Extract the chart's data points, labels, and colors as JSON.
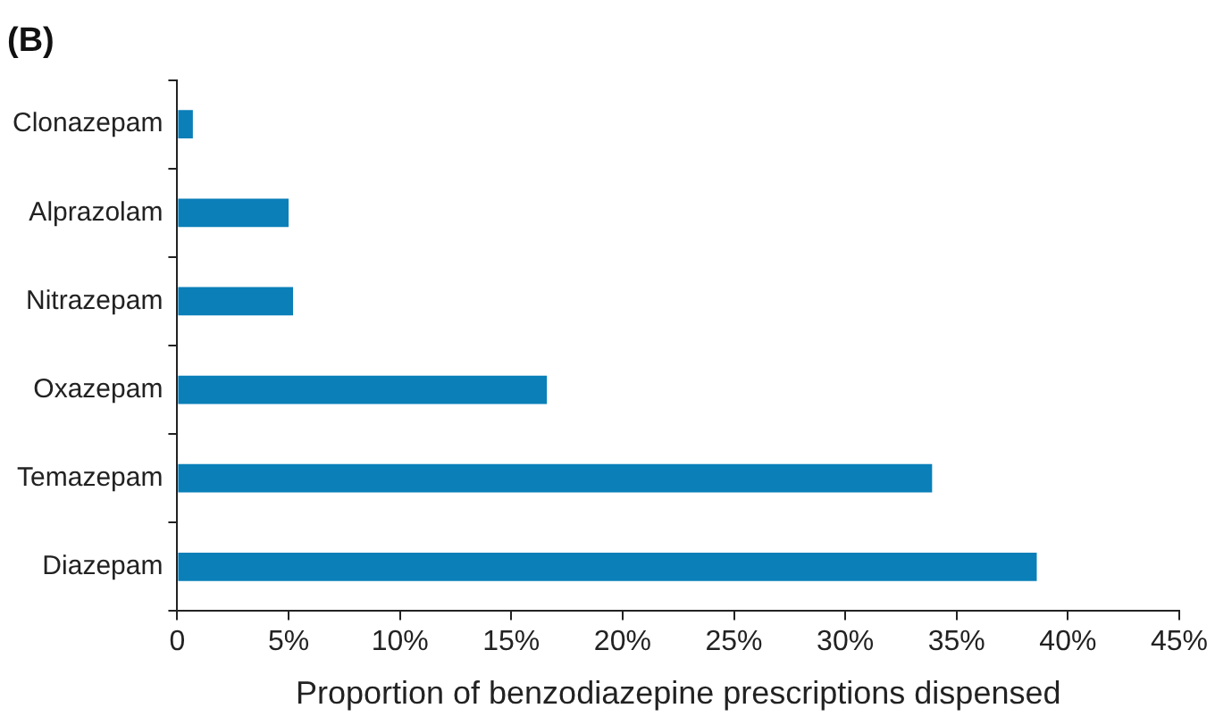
{
  "chart_data": {
    "type": "bar",
    "orientation": "horizontal",
    "title": "(B)",
    "xlabel": "Proportion of benzodiazepine prescriptions dispensed",
    "categories": [
      "Clonazepam",
      "Alprazolam",
      "Nitrazepam",
      "Oxazepam",
      "Temazepam",
      "Diazepam"
    ],
    "values": [
      0.7,
      5.0,
      5.2,
      16.6,
      33.9,
      38.6
    ],
    "color": "#0a7fb8",
    "xlim": [
      0,
      45
    ],
    "xticks": [
      {
        "value": 0,
        "label": "0"
      },
      {
        "value": 5,
        "label": "5%"
      },
      {
        "value": 10,
        "label": "10%"
      },
      {
        "value": 15,
        "label": "15%"
      },
      {
        "value": 20,
        "label": "20%"
      },
      {
        "value": 25,
        "label": "25%"
      },
      {
        "value": 30,
        "label": "30%"
      },
      {
        "value": 35,
        "label": "35%"
      },
      {
        "value": 40,
        "label": "40%"
      },
      {
        "value": 45,
        "label": "45%"
      }
    ],
    "grid": false,
    "legend": false
  }
}
